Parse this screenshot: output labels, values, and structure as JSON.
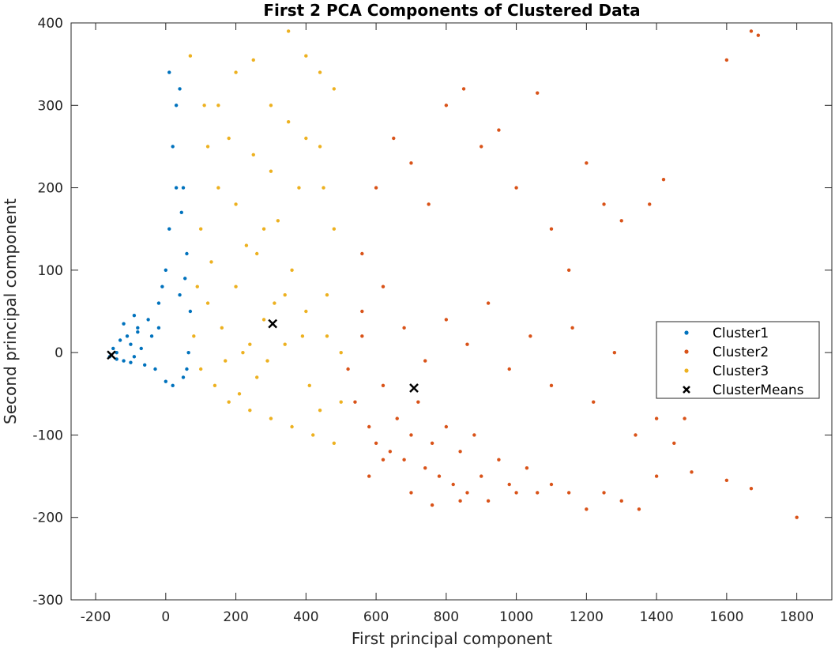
{
  "chart_data": {
    "type": "scatter",
    "title": "First 2 PCA Components of Clustered Data",
    "xlabel": "First principal component",
    "ylabel": "Second principal component",
    "xlim": [
      -270,
      1900
    ],
    "ylim": [
      -300,
      400
    ],
    "xticks": [
      -200,
      0,
      200,
      400,
      600,
      800,
      1000,
      1200,
      1400,
      1600,
      1800
    ],
    "yticks": [
      -300,
      -200,
      -100,
      0,
      100,
      200,
      300,
      400
    ],
    "xtick_labels": [
      "-200",
      "0",
      "200",
      "400",
      "600",
      "800",
      "1000",
      "1200",
      "1400",
      "1600",
      "1800"
    ],
    "ytick_labels": [
      "-300",
      "-200",
      "-100",
      "0",
      "100",
      "200",
      "300",
      "400"
    ],
    "grid": false,
    "legend_position": "right",
    "series": [
      {
        "name": "Cluster1",
        "color": "#0072BD",
        "marker": "dot",
        "points": [
          [
            -160,
            -5
          ],
          [
            -150,
            5
          ],
          [
            -140,
            0
          ],
          [
            -130,
            15
          ],
          [
            -120,
            -10
          ],
          [
            -110,
            20
          ],
          [
            -100,
            10
          ],
          [
            -90,
            -5
          ],
          [
            -80,
            30
          ],
          [
            -70,
            5
          ],
          [
            -60,
            -15
          ],
          [
            -50,
            40
          ],
          [
            -40,
            20
          ],
          [
            -30,
            -20
          ],
          [
            -20,
            60
          ],
          [
            -10,
            80
          ],
          [
            0,
            100
          ],
          [
            10,
            150
          ],
          [
            20,
            250
          ],
          [
            30,
            300
          ],
          [
            40,
            320
          ],
          [
            50,
            200
          ],
          [
            60,
            120
          ],
          [
            70,
            50
          ],
          [
            60,
            -20
          ],
          [
            50,
            -30
          ],
          [
            20,
            -40
          ],
          [
            0,
            -35
          ],
          [
            -90,
            45
          ],
          [
            -120,
            35
          ],
          [
            -140,
            -8
          ],
          [
            -100,
            -12
          ],
          [
            -80,
            25
          ],
          [
            30,
            200
          ],
          [
            45,
            170
          ],
          [
            10,
            340
          ],
          [
            55,
            90
          ],
          [
            65,
            0
          ],
          [
            40,
            70
          ],
          [
            -20,
            30
          ]
        ]
      },
      {
        "name": "Cluster2",
        "color": "#D95319",
        "marker": "dot",
        "points": [
          [
            520,
            -20
          ],
          [
            540,
            -60
          ],
          [
            560,
            20
          ],
          [
            580,
            -90
          ],
          [
            600,
            -110
          ],
          [
            620,
            -40
          ],
          [
            640,
            -120
          ],
          [
            660,
            -80
          ],
          [
            680,
            -130
          ],
          [
            700,
            -100
          ],
          [
            720,
            -60
          ],
          [
            740,
            -140
          ],
          [
            760,
            -110
          ],
          [
            780,
            -150
          ],
          [
            800,
            -90
          ],
          [
            820,
            -160
          ],
          [
            840,
            -120
          ],
          [
            860,
            -170
          ],
          [
            880,
            -100
          ],
          [
            900,
            -150
          ],
          [
            920,
            -180
          ],
          [
            950,
            -130
          ],
          [
            980,
            -160
          ],
          [
            1000,
            -170
          ],
          [
            1030,
            -140
          ],
          [
            1060,
            -170
          ],
          [
            1100,
            -160
          ],
          [
            1150,
            -170
          ],
          [
            1200,
            -190
          ],
          [
            1250,
            -170
          ],
          [
            1300,
            -180
          ],
          [
            1350,
            -190
          ],
          [
            1400,
            -150
          ],
          [
            1500,
            -145
          ],
          [
            1600,
            -155
          ],
          [
            1670,
            -165
          ],
          [
            1800,
            -200
          ],
          [
            560,
            120
          ],
          [
            600,
            200
          ],
          [
            650,
            260
          ],
          [
            700,
            230
          ],
          [
            750,
            180
          ],
          [
            800,
            300
          ],
          [
            850,
            320
          ],
          [
            900,
            250
          ],
          [
            950,
            270
          ],
          [
            1000,
            200
          ],
          [
            1060,
            315
          ],
          [
            1100,
            150
          ],
          [
            1150,
            100
          ],
          [
            1200,
            230
          ],
          [
            1250,
            180
          ],
          [
            1300,
            160
          ],
          [
            1380,
            180
          ],
          [
            1420,
            210
          ],
          [
            1600,
            355
          ],
          [
            1670,
            390
          ],
          [
            1690,
            385
          ],
          [
            560,
            50
          ],
          [
            620,
            80
          ],
          [
            680,
            30
          ],
          [
            740,
            -10
          ],
          [
            800,
            40
          ],
          [
            860,
            10
          ],
          [
            920,
            60
          ],
          [
            980,
            -20
          ],
          [
            1040,
            20
          ],
          [
            1100,
            -40
          ],
          [
            1160,
            30
          ],
          [
            1220,
            -60
          ],
          [
            1280,
            0
          ],
          [
            1340,
            -100
          ],
          [
            1400,
            -80
          ],
          [
            1450,
            -110
          ],
          [
            1480,
            -80
          ],
          [
            580,
            -150
          ],
          [
            620,
            -130
          ],
          [
            700,
            -170
          ],
          [
            760,
            -185
          ],
          [
            840,
            -180
          ]
        ]
      },
      {
        "name": "Cluster3",
        "color": "#EDB120",
        "marker": "dot",
        "points": [
          [
            80,
            20
          ],
          [
            100,
            -20
          ],
          [
            120,
            60
          ],
          [
            140,
            -40
          ],
          [
            160,
            30
          ],
          [
            180,
            -60
          ],
          [
            200,
            80
          ],
          [
            220,
            0
          ],
          [
            240,
            -70
          ],
          [
            260,
            120
          ],
          [
            280,
            40
          ],
          [
            300,
            -80
          ],
          [
            320,
            160
          ],
          [
            340,
            10
          ],
          [
            360,
            -90
          ],
          [
            380,
            200
          ],
          [
            400,
            50
          ],
          [
            420,
            -100
          ],
          [
            440,
            250
          ],
          [
            460,
            20
          ],
          [
            480,
            -110
          ],
          [
            500,
            -60
          ],
          [
            100,
            150
          ],
          [
            120,
            250
          ],
          [
            150,
            300
          ],
          [
            200,
            340
          ],
          [
            250,
            355
          ],
          [
            300,
            300
          ],
          [
            350,
            390
          ],
          [
            400,
            360
          ],
          [
            440,
            340
          ],
          [
            480,
            320
          ],
          [
            150,
            200
          ],
          [
            200,
            180
          ],
          [
            250,
            240
          ],
          [
            300,
            220
          ],
          [
            350,
            280
          ],
          [
            400,
            260
          ],
          [
            450,
            200
          ],
          [
            480,
            150
          ],
          [
            90,
            80
          ],
          [
            130,
            110
          ],
          [
            170,
            -10
          ],
          [
            210,
            -50
          ],
          [
            260,
            -30
          ],
          [
            310,
            60
          ],
          [
            360,
            100
          ],
          [
            410,
            -40
          ],
          [
            460,
            70
          ],
          [
            500,
            0
          ],
          [
            240,
            10
          ],
          [
            290,
            -10
          ],
          [
            340,
            70
          ],
          [
            390,
            20
          ],
          [
            440,
            -70
          ],
          [
            110,
            300
          ],
          [
            70,
            360
          ],
          [
            180,
            260
          ],
          [
            230,
            130
          ],
          [
            280,
            150
          ]
        ]
      },
      {
        "name": "ClusterMeans",
        "color": "#000000",
        "marker": "x",
        "points": [
          [
            -155,
            -3
          ],
          [
            305,
            35
          ],
          [
            708,
            -43
          ]
        ]
      }
    ]
  }
}
